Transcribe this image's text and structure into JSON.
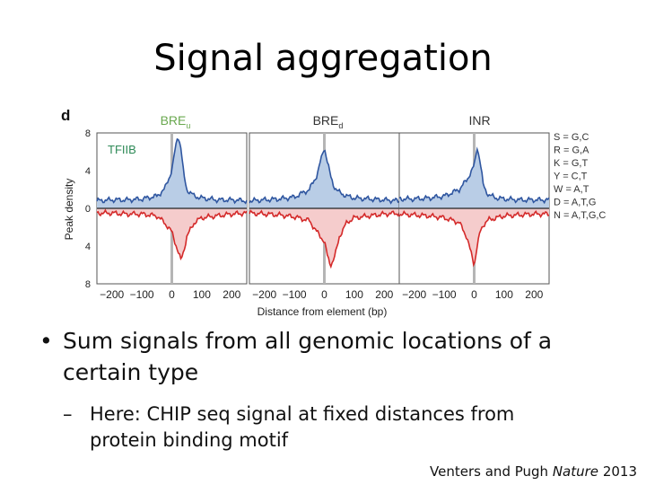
{
  "slide": {
    "title": "Signal aggregation",
    "bullets": [
      {
        "marker": "•",
        "text": "Sum signals from all genomic locations of a certain type"
      }
    ],
    "subbullets": [
      {
        "marker": "–",
        "text": "Here: CHIP seq signal at fixed distances from protein binding motif"
      }
    ],
    "citation": {
      "authors": "Venters and Pugh",
      "journal": "Nature",
      "year": "2013"
    }
  },
  "figure": {
    "panel_letter": "d",
    "factor_label": "TFIIB",
    "ylabel": "Peak density",
    "xlabel": "Distance from element (bp)",
    "yticks": [
      "8",
      "4",
      "0",
      "4",
      "8"
    ],
    "xticks": [
      "−200",
      "−100",
      "0",
      "100",
      "200"
    ],
    "panels": [
      {
        "label": "BRE",
        "subscript": "u",
        "label_color": "#6aa84f"
      },
      {
        "label": "BRE",
        "subscript": "d",
        "label_color": "#333333"
      },
      {
        "label": "INR",
        "subscript": "",
        "label_color": "#333333"
      }
    ],
    "legend": [
      "S = G,C",
      "R = G,A",
      "K = G,T",
      "Y = C,T",
      "W = A,T",
      "D = A,T,G",
      "N = A,T,G,C"
    ],
    "colors": {
      "sense": "#2f56a0",
      "sense_fill": "#b9cde6",
      "antisense": "#d42a2a",
      "antisense_fill": "#f5cccc"
    }
  },
  "chart_data": [
    {
      "type": "area",
      "title": "BRE",
      "xlabel": "Distance from element (bp)",
      "ylabel": "Peak density",
      "xlim": [
        -250,
        250
      ],
      "ylim": [
        -8,
        8
      ],
      "x": [
        -250,
        -200,
        -150,
        -100,
        -50,
        -25,
        0,
        10,
        20,
        30,
        40,
        50,
        75,
        100,
        150,
        200,
        250
      ],
      "series": [
        {
          "values": [
            0.8,
            0.9,
            0.9,
            1.0,
            1.3,
            2.0,
            4.0,
            6.0,
            7.8,
            6.5,
            3.5,
            2.0,
            1.3,
            1.1,
            0.9,
            0.9,
            0.8
          ]
        },
        {
          "values": [
            -0.5,
            -0.5,
            -0.6,
            -0.6,
            -0.8,
            -1.5,
            -2.5,
            -3.5,
            -4.5,
            -5.5,
            -4.5,
            -3.0,
            -1.5,
            -1.0,
            -0.8,
            -0.6,
            -0.5
          ]
        }
      ]
    },
    {
      "type": "area",
      "title": "BRE",
      "xlabel": "Distance from element (bp)",
      "ylabel": "Peak density",
      "xlim": [
        -250,
        250
      ],
      "ylim": [
        -8,
        8
      ],
      "x": [
        -250,
        -200,
        -150,
        -100,
        -50,
        -25,
        0,
        10,
        20,
        30,
        40,
        50,
        75,
        100,
        150,
        200,
        250
      ],
      "series": [
        {
          "values": [
            0.8,
            0.9,
            1.0,
            1.2,
            2.0,
            3.5,
            6.5,
            5.0,
            3.5,
            2.5,
            2.0,
            1.7,
            1.3,
            1.1,
            1.0,
            0.9,
            0.8
          ]
        },
        {
          "values": [
            -0.5,
            -0.6,
            -0.7,
            -0.9,
            -1.3,
            -2.5,
            -3.5,
            -5.0,
            -6.0,
            -5.5,
            -4.5,
            -3.0,
            -1.5,
            -1.0,
            -0.8,
            -0.6,
            -0.5
          ]
        }
      ]
    },
    {
      "type": "area",
      "title": "INR",
      "xlabel": "Distance from element (bp)",
      "ylabel": "Peak density",
      "xlim": [
        -250,
        250
      ],
      "ylim": [
        -8,
        8
      ],
      "x": [
        -250,
        -200,
        -150,
        -100,
        -50,
        -25,
        0,
        10,
        20,
        30,
        40,
        50,
        75,
        100,
        150,
        200,
        250
      ],
      "series": [
        {
          "values": [
            1.0,
            1.0,
            1.1,
            1.3,
            2.0,
            3.0,
            4.5,
            6.5,
            5.0,
            2.5,
            1.8,
            1.4,
            1.1,
            1.0,
            0.9,
            0.9,
            0.9
          ]
        },
        {
          "values": [
            -0.6,
            -0.7,
            -0.8,
            -1.0,
            -1.5,
            -3.0,
            -6.0,
            -4.0,
            -2.5,
            -1.8,
            -1.4,
            -1.2,
            -1.0,
            -0.8,
            -0.7,
            -0.6,
            -0.6
          ]
        }
      ]
    }
  ]
}
